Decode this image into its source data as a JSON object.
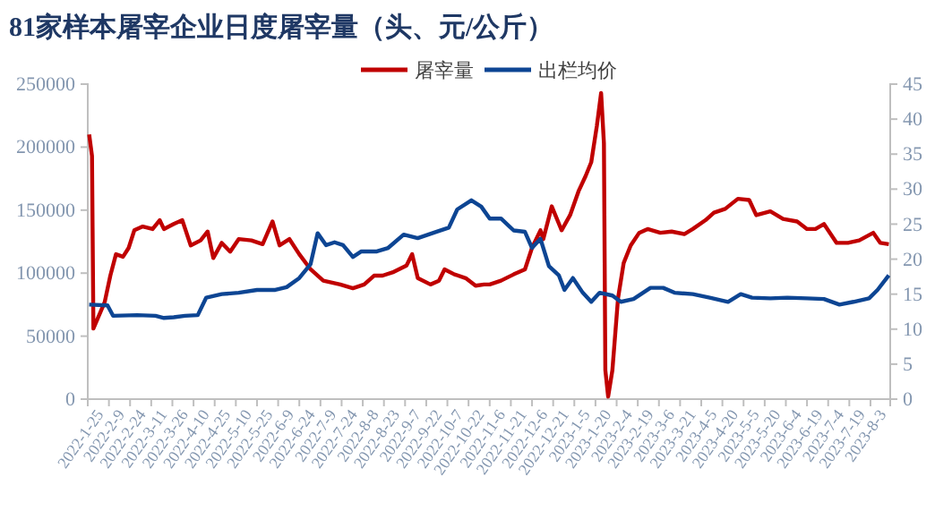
{
  "chart_data": {
    "type": "line",
    "title": "81家样本屠宰企业日度屠宰量（头、元/公斤）",
    "legend": "top",
    "marker": "none",
    "line_style": "solid",
    "grid": false,
    "xlim": [
      "2022-01-25",
      "2023-08-17"
    ],
    "xticks": [
      {
        "value": "2022-01-25",
        "label": "2022-1-25"
      },
      {
        "value": "2022-02-09",
        "label": "2022-2-9"
      },
      {
        "value": "2022-02-24",
        "label": "2022-2-24"
      },
      {
        "value": "2022-03-11",
        "label": "2022-3-11"
      },
      {
        "value": "2022-03-26",
        "label": "2022-3-26"
      },
      {
        "value": "2022-04-10",
        "label": "2022-4-10"
      },
      {
        "value": "2022-04-25",
        "label": "2022-4-25"
      },
      {
        "value": "2022-05-10",
        "label": "2022-5-10"
      },
      {
        "value": "2022-05-25",
        "label": "2022-5-25"
      },
      {
        "value": "2022-06-09",
        "label": "2022-6-9"
      },
      {
        "value": "2022-06-24",
        "label": "2022-6-24"
      },
      {
        "value": "2022-07-09",
        "label": "2022-7-9"
      },
      {
        "value": "2022-07-24",
        "label": "2022-7-24"
      },
      {
        "value": "2022-08-08",
        "label": "2022-8-8"
      },
      {
        "value": "2022-08-23",
        "label": "2022-8-23"
      },
      {
        "value": "2022-09-07",
        "label": "2022-9-7"
      },
      {
        "value": "2022-09-22",
        "label": "2022-9-22"
      },
      {
        "value": "2022-10-07",
        "label": "2022-10-7"
      },
      {
        "value": "2022-10-22",
        "label": "2022-10-22"
      },
      {
        "value": "2022-11-06",
        "label": "2022-11-6"
      },
      {
        "value": "2022-11-21",
        "label": "2022-11-21"
      },
      {
        "value": "2022-12-06",
        "label": "2022-12-6"
      },
      {
        "value": "2022-12-21",
        "label": "2022-12-21"
      },
      {
        "value": "2023-01-05",
        "label": "2023-1-5"
      },
      {
        "value": "2023-01-20",
        "label": "2023-1-20"
      },
      {
        "value": "2023-02-04",
        "label": "2023-2-4"
      },
      {
        "value": "2023-02-19",
        "label": "2023-2-19"
      },
      {
        "value": "2023-03-06",
        "label": "2023-3-6"
      },
      {
        "value": "2023-03-21",
        "label": "2023-3-21"
      },
      {
        "value": "2023-04-05",
        "label": "2023-4-5"
      },
      {
        "value": "2023-04-20",
        "label": "2023-4-20"
      },
      {
        "value": "2023-05-05",
        "label": "2023-5-5"
      },
      {
        "value": "2023-05-20",
        "label": "2023-5-20"
      },
      {
        "value": "2023-06-04",
        "label": "2023-6-4"
      },
      {
        "value": "2023-06-19",
        "label": "2023-6-19"
      },
      {
        "value": "2023-07-04",
        "label": "2023-7-4"
      },
      {
        "value": "2023-07-19",
        "label": "2023-7-19"
      },
      {
        "value": "2023-08-03",
        "label": "2023-8-3"
      }
    ],
    "ylim": [
      0,
      250000
    ],
    "yticks": [
      0,
      50000,
      100000,
      150000,
      200000,
      250000
    ],
    "y2lim": [
      0,
      45
    ],
    "y2ticks": [
      0,
      5,
      10,
      15,
      20,
      25,
      30,
      35,
      40,
      45
    ],
    "series": [
      {
        "name": "屠宰量",
        "color": "#c00000",
        "x": [
          "2022-01-26",
          "2022-01-28",
          "2022-01-29",
          "2022-02-06",
          "2022-02-10",
          "2022-02-14",
          "2022-02-19",
          "2022-02-23",
          "2022-02-27",
          "2022-03-05",
          "2022-03-12",
          "2022-03-17",
          "2022-03-20",
          "2022-03-27",
          "2022-04-02",
          "2022-04-08",
          "2022-04-15",
          "2022-04-20",
          "2022-04-24",
          "2022-04-30",
          "2022-05-06",
          "2022-05-12",
          "2022-05-21",
          "2022-05-29",
          "2022-06-05",
          "2022-06-10",
          "2022-06-17",
          "2022-06-24",
          "2022-07-02",
          "2022-07-11",
          "2022-07-23",
          "2022-08-01",
          "2022-08-09",
          "2022-08-16",
          "2022-08-22",
          "2022-08-30",
          "2022-09-08",
          "2022-09-12",
          "2022-09-16",
          "2022-09-25",
          "2022-10-01",
          "2022-10-05",
          "2022-10-12",
          "2022-10-20",
          "2022-10-27",
          "2022-11-02",
          "2022-11-06",
          "2022-11-14",
          "2022-11-23",
          "2022-12-01",
          "2022-12-06",
          "2022-12-12",
          "2022-12-14",
          "2022-12-20",
          "2022-12-27",
          "2023-01-02",
          "2023-01-08",
          "2023-01-13",
          "2023-01-17",
          "2023-01-21",
          "2023-01-24",
          "2023-01-26",
          "2023-01-27",
          "2023-01-29",
          "2023-02-01",
          "2023-02-05",
          "2023-02-09",
          "2023-02-14",
          "2023-02-20",
          "2023-02-26",
          "2023-03-07",
          "2023-03-15",
          "2023-03-24",
          "2023-03-30",
          "2023-04-08",
          "2023-04-14",
          "2023-04-22",
          "2023-05-01",
          "2023-05-09",
          "2023-05-14",
          "2023-05-24",
          "2023-06-02",
          "2023-06-12",
          "2023-06-19",
          "2023-06-25",
          "2023-07-01",
          "2023-07-10",
          "2023-07-18",
          "2023-07-26",
          "2023-08-05",
          "2023-08-10",
          "2023-08-16"
        ],
        "values": [
          210000,
          193000,
          56000,
          77000,
          98000,
          115000,
          113000,
          120000,
          134000,
          137000,
          135000,
          142000,
          135000,
          139000,
          142000,
          122000,
          126000,
          133000,
          112000,
          124000,
          117000,
          127000,
          126000,
          123000,
          141000,
          122000,
          127000,
          115000,
          103000,
          94000,
          91000,
          88000,
          91000,
          98000,
          98000,
          101000,
          106000,
          115000,
          96000,
          91000,
          94000,
          103000,
          99000,
          96000,
          90000,
          91000,
          91000,
          94000,
          99000,
          103000,
          120000,
          134000,
          127000,
          153000,
          134000,
          146000,
          165000,
          177000,
          188000,
          217000,
          243000,
          203000,
          23000,
          2000,
          23000,
          80000,
          108000,
          122000,
          132000,
          135000,
          132000,
          133000,
          131000,
          135000,
          142000,
          148000,
          151000,
          159000,
          158000,
          146000,
          149000,
          143000,
          141000,
          135000,
          135000,
          139000,
          124000,
          124000,
          126000,
          132000,
          124000,
          123000
        ]
      },
      {
        "name": "出栏均价",
        "color": "#0d4593",
        "axis": "y2",
        "x": [
          "2022-01-26",
          "2022-02-08",
          "2022-02-12",
          "2022-03-01",
          "2022-03-14",
          "2022-03-20",
          "2022-03-27",
          "2022-04-04",
          "2022-04-13",
          "2022-04-19",
          "2022-04-30",
          "2022-05-12",
          "2022-05-25",
          "2022-06-07",
          "2022-06-15",
          "2022-06-24",
          "2022-07-02",
          "2022-07-07",
          "2022-07-13",
          "2022-07-19",
          "2022-07-25",
          "2022-08-01",
          "2022-08-07",
          "2022-08-18",
          "2022-08-26",
          "2022-09-06",
          "2022-09-16",
          "2022-09-29",
          "2022-10-08",
          "2022-10-14",
          "2022-10-24",
          "2022-10-31",
          "2022-11-06",
          "2022-11-14",
          "2022-11-23",
          "2022-12-01",
          "2022-12-06",
          "2022-12-12",
          "2022-12-18",
          "2022-12-25",
          "2022-12-29",
          "2023-01-04",
          "2023-01-11",
          "2023-01-17",
          "2023-01-23",
          "2023-02-01",
          "2023-02-07",
          "2023-02-16",
          "2023-02-28",
          "2023-03-09",
          "2023-03-17",
          "2023-03-30",
          "2023-04-11",
          "2023-04-24",
          "2023-05-03",
          "2023-05-11",
          "2023-05-24",
          "2023-06-05",
          "2023-06-19",
          "2023-07-01",
          "2023-07-12",
          "2023-07-22",
          "2023-08-02",
          "2023-08-08",
          "2023-08-16"
        ],
        "values": [
          13.5,
          13.4,
          11.9,
          12.0,
          11.9,
          11.6,
          11.7,
          11.9,
          12.0,
          14.5,
          15.0,
          15.2,
          15.6,
          15.6,
          16.0,
          17.3,
          19.3,
          23.7,
          22.0,
          22.4,
          22.0,
          20.3,
          21.1,
          21.1,
          21.6,
          23.5,
          23.0,
          23.9,
          24.5,
          27.1,
          28.4,
          27.5,
          25.8,
          25.8,
          24.1,
          23.9,
          21.6,
          22.9,
          19.0,
          17.7,
          15.6,
          17.3,
          15.2,
          13.9,
          15.2,
          14.8,
          13.9,
          14.3,
          15.9,
          15.9,
          15.2,
          15.0,
          14.5,
          13.9,
          15.0,
          14.5,
          14.4,
          14.5,
          14.4,
          14.3,
          13.5,
          13.9,
          14.4,
          15.6,
          17.7
        ]
      }
    ]
  }
}
